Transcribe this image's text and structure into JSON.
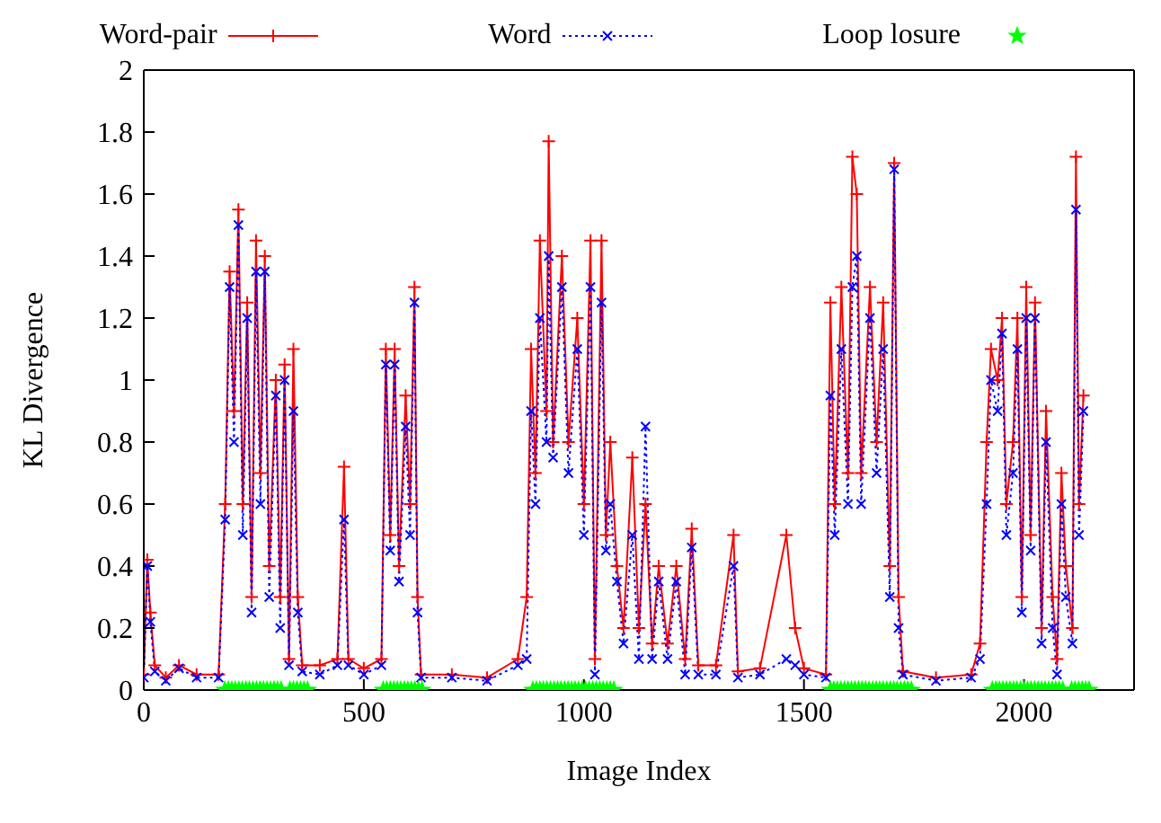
{
  "chart_data": {
    "type": "line",
    "xlabel": "Image Index",
    "ylabel": "KL Divergence",
    "xlim": [
      0,
      2250
    ],
    "xticks": [
      0,
      500,
      1000,
      1500,
      2000
    ],
    "ylim": [
      0,
      2
    ],
    "yticks": [
      0,
      0.2,
      0.4,
      0.6,
      0.8,
      1,
      1.2,
      1.4,
      1.6,
      1.8,
      2
    ],
    "legend": "top",
    "series": [
      {
        "name": "Word-pair",
        "color": "#ff0000",
        "marker": "cross",
        "line_style": "solid",
        "x": [
          0,
          8,
          15,
          25,
          50,
          80,
          120,
          170,
          185,
          195,
          205,
          215,
          225,
          235,
          245,
          255,
          265,
          275,
          285,
          300,
          310,
          320,
          330,
          340,
          350,
          360,
          400,
          440,
          455,
          465,
          500,
          540,
          550,
          560,
          570,
          580,
          595,
          605,
          615,
          622,
          630,
          700,
          780,
          850,
          870,
          880,
          890,
          900,
          915,
          920,
          930,
          950,
          965,
          985,
          1000,
          1015,
          1025,
          1040,
          1050,
          1060,
          1075,
          1090,
          1110,
          1125,
          1140,
          1155,
          1170,
          1190,
          1210,
          1230,
          1245,
          1260,
          1300,
          1340,
          1350,
          1400,
          1460,
          1480,
          1500,
          1550,
          1560,
          1570,
          1585,
          1600,
          1610,
          1620,
          1630,
          1650,
          1665,
          1680,
          1695,
          1705,
          1715,
          1725,
          1800,
          1880,
          1900,
          1915,
          1925,
          1940,
          1950,
          1960,
          1975,
          1985,
          1995,
          2005,
          2015,
          2025,
          2040,
          2050,
          2065,
          2075,
          2085,
          2095,
          2110,
          2118,
          2125,
          2135
        ],
        "values": [
          0.05,
          0.42,
          0.25,
          0.08,
          0.04,
          0.08,
          0.05,
          0.05,
          0.6,
          1.35,
          0.9,
          1.55,
          0.6,
          1.25,
          0.3,
          1.45,
          0.7,
          1.4,
          0.4,
          1.0,
          0.3,
          1.05,
          0.1,
          1.1,
          0.3,
          0.08,
          0.08,
          0.1,
          0.72,
          0.1,
          0.07,
          0.1,
          1.1,
          0.5,
          1.1,
          0.4,
          0.95,
          0.6,
          1.3,
          0.3,
          0.05,
          0.05,
          0.04,
          0.1,
          0.3,
          1.1,
          0.7,
          1.45,
          0.9,
          1.77,
          0.8,
          1.4,
          0.8,
          1.2,
          0.6,
          1.45,
          0.1,
          1.45,
          0.5,
          0.8,
          0.4,
          0.2,
          0.75,
          0.2,
          0.6,
          0.15,
          0.4,
          0.15,
          0.4,
          0.1,
          0.52,
          0.08,
          0.08,
          0.5,
          0.06,
          0.07,
          0.5,
          0.2,
          0.07,
          0.05,
          1.25,
          0.6,
          1.3,
          0.7,
          1.72,
          1.6,
          0.7,
          1.3,
          0.8,
          1.25,
          0.4,
          1.7,
          0.3,
          0.06,
          0.04,
          0.05,
          0.15,
          0.8,
          1.1,
          1.0,
          1.2,
          0.6,
          0.8,
          1.2,
          0.3,
          1.3,
          0.5,
          1.25,
          0.2,
          0.9,
          0.3,
          0.1,
          0.7,
          0.4,
          0.2,
          1.72,
          0.6,
          0.95
        ]
      },
      {
        "name": "Word",
        "color": "#0000ff",
        "marker": "cross",
        "line_style": "dotted",
        "x": [
          0,
          8,
          15,
          25,
          50,
          80,
          120,
          170,
          185,
          195,
          205,
          215,
          225,
          235,
          245,
          255,
          265,
          275,
          285,
          300,
          310,
          320,
          330,
          340,
          350,
          360,
          400,
          440,
          455,
          465,
          500,
          540,
          550,
          560,
          570,
          580,
          595,
          605,
          615,
          622,
          630,
          700,
          780,
          850,
          870,
          880,
          890,
          900,
          915,
          920,
          930,
          950,
          965,
          985,
          1000,
          1015,
          1025,
          1040,
          1050,
          1060,
          1075,
          1090,
          1110,
          1125,
          1140,
          1155,
          1170,
          1190,
          1210,
          1230,
          1245,
          1260,
          1300,
          1340,
          1350,
          1400,
          1460,
          1480,
          1500,
          1550,
          1560,
          1570,
          1585,
          1600,
          1610,
          1620,
          1630,
          1650,
          1665,
          1680,
          1695,
          1705,
          1715,
          1725,
          1800,
          1880,
          1900,
          1915,
          1925,
          1940,
          1950,
          1960,
          1975,
          1985,
          1995,
          2005,
          2015,
          2025,
          2040,
          2050,
          2065,
          2075,
          2085,
          2095,
          2110,
          2118,
          2125,
          2135
        ],
        "values": [
          0.04,
          0.4,
          0.22,
          0.06,
          0.03,
          0.07,
          0.04,
          0.04,
          0.55,
          1.3,
          0.8,
          1.5,
          0.5,
          1.2,
          0.25,
          1.35,
          0.6,
          1.35,
          0.3,
          0.95,
          0.2,
          1.0,
          0.08,
          0.9,
          0.25,
          0.06,
          0.05,
          0.08,
          0.55,
          0.08,
          0.05,
          0.08,
          1.05,
          0.45,
          1.05,
          0.35,
          0.85,
          0.5,
          1.25,
          0.25,
          0.04,
          0.04,
          0.03,
          0.08,
          0.1,
          0.9,
          0.6,
          1.2,
          0.8,
          1.4,
          0.75,
          1.3,
          0.7,
          1.1,
          0.5,
          1.3,
          0.05,
          1.25,
          0.45,
          0.6,
          0.35,
          0.15,
          0.5,
          0.1,
          0.85,
          0.1,
          0.35,
          0.1,
          0.35,
          0.05,
          0.46,
          0.05,
          0.05,
          0.4,
          0.04,
          0.05,
          0.1,
          0.08,
          0.05,
          0.04,
          0.95,
          0.5,
          1.1,
          0.6,
          1.3,
          1.4,
          0.6,
          1.2,
          0.7,
          1.1,
          0.3,
          1.68,
          0.2,
          0.05,
          0.03,
          0.04,
          0.1,
          0.6,
          1.0,
          0.9,
          1.15,
          0.5,
          0.7,
          1.1,
          0.25,
          1.2,
          0.45,
          1.2,
          0.15,
          0.8,
          0.2,
          0.05,
          0.6,
          0.3,
          0.15,
          1.55,
          0.5,
          0.9
        ]
      },
      {
        "name": "Loop losure",
        "color": "#00ff00",
        "type": "scatter",
        "marker": "star",
        "x": [
          184,
          192,
          200,
          208,
          216,
          224,
          232,
          240,
          248,
          256,
          264,
          272,
          280,
          288,
          296,
          304,
          312,
          332,
          340,
          348,
          356,
          364,
          372,
          544,
          552,
          560,
          568,
          576,
          584,
          592,
          600,
          608,
          616,
          624,
          632,
          884,
          892,
          900,
          908,
          916,
          924,
          932,
          940,
          948,
          956,
          964,
          972,
          980,
          988,
          996,
          1004,
          1012,
          1020,
          1028,
          1036,
          1044,
          1052,
          1060,
          1068,
          1560,
          1568,
          1576,
          1584,
          1592,
          1600,
          1608,
          1616,
          1624,
          1632,
          1640,
          1648,
          1656,
          1664,
          1672,
          1680,
          1688,
          1696,
          1704,
          1712,
          1720,
          1728,
          1736,
          1744,
          1928,
          1936,
          1944,
          1952,
          1960,
          1968,
          1976,
          1984,
          1992,
          2000,
          2008,
          2016,
          2024,
          2032,
          2040,
          2048,
          2056,
          2064,
          2072,
          2080,
          2088,
          2108,
          2116,
          2124,
          2132,
          2140,
          2148
        ],
        "values": [
          0,
          0,
          0,
          0,
          0,
          0,
          0,
          0,
          0,
          0,
          0,
          0,
          0,
          0,
          0,
          0,
          0,
          0,
          0,
          0,
          0,
          0,
          0,
          0,
          0,
          0,
          0,
          0,
          0,
          0,
          0,
          0,
          0,
          0,
          0,
          0,
          0,
          0,
          0,
          0,
          0,
          0,
          0,
          0,
          0,
          0,
          0,
          0,
          0,
          0,
          0,
          0,
          0,
          0,
          0,
          0,
          0,
          0,
          0,
          0,
          0,
          0,
          0,
          0,
          0,
          0,
          0,
          0,
          0,
          0,
          0,
          0,
          0,
          0,
          0,
          0,
          0,
          0,
          0,
          0,
          0,
          0,
          0,
          0,
          0,
          0,
          0,
          0,
          0,
          0,
          0,
          0,
          0,
          0,
          0,
          0,
          0,
          0,
          0,
          0,
          0,
          0,
          0,
          0,
          0,
          0,
          0,
          0,
          0,
          0
        ]
      }
    ]
  }
}
